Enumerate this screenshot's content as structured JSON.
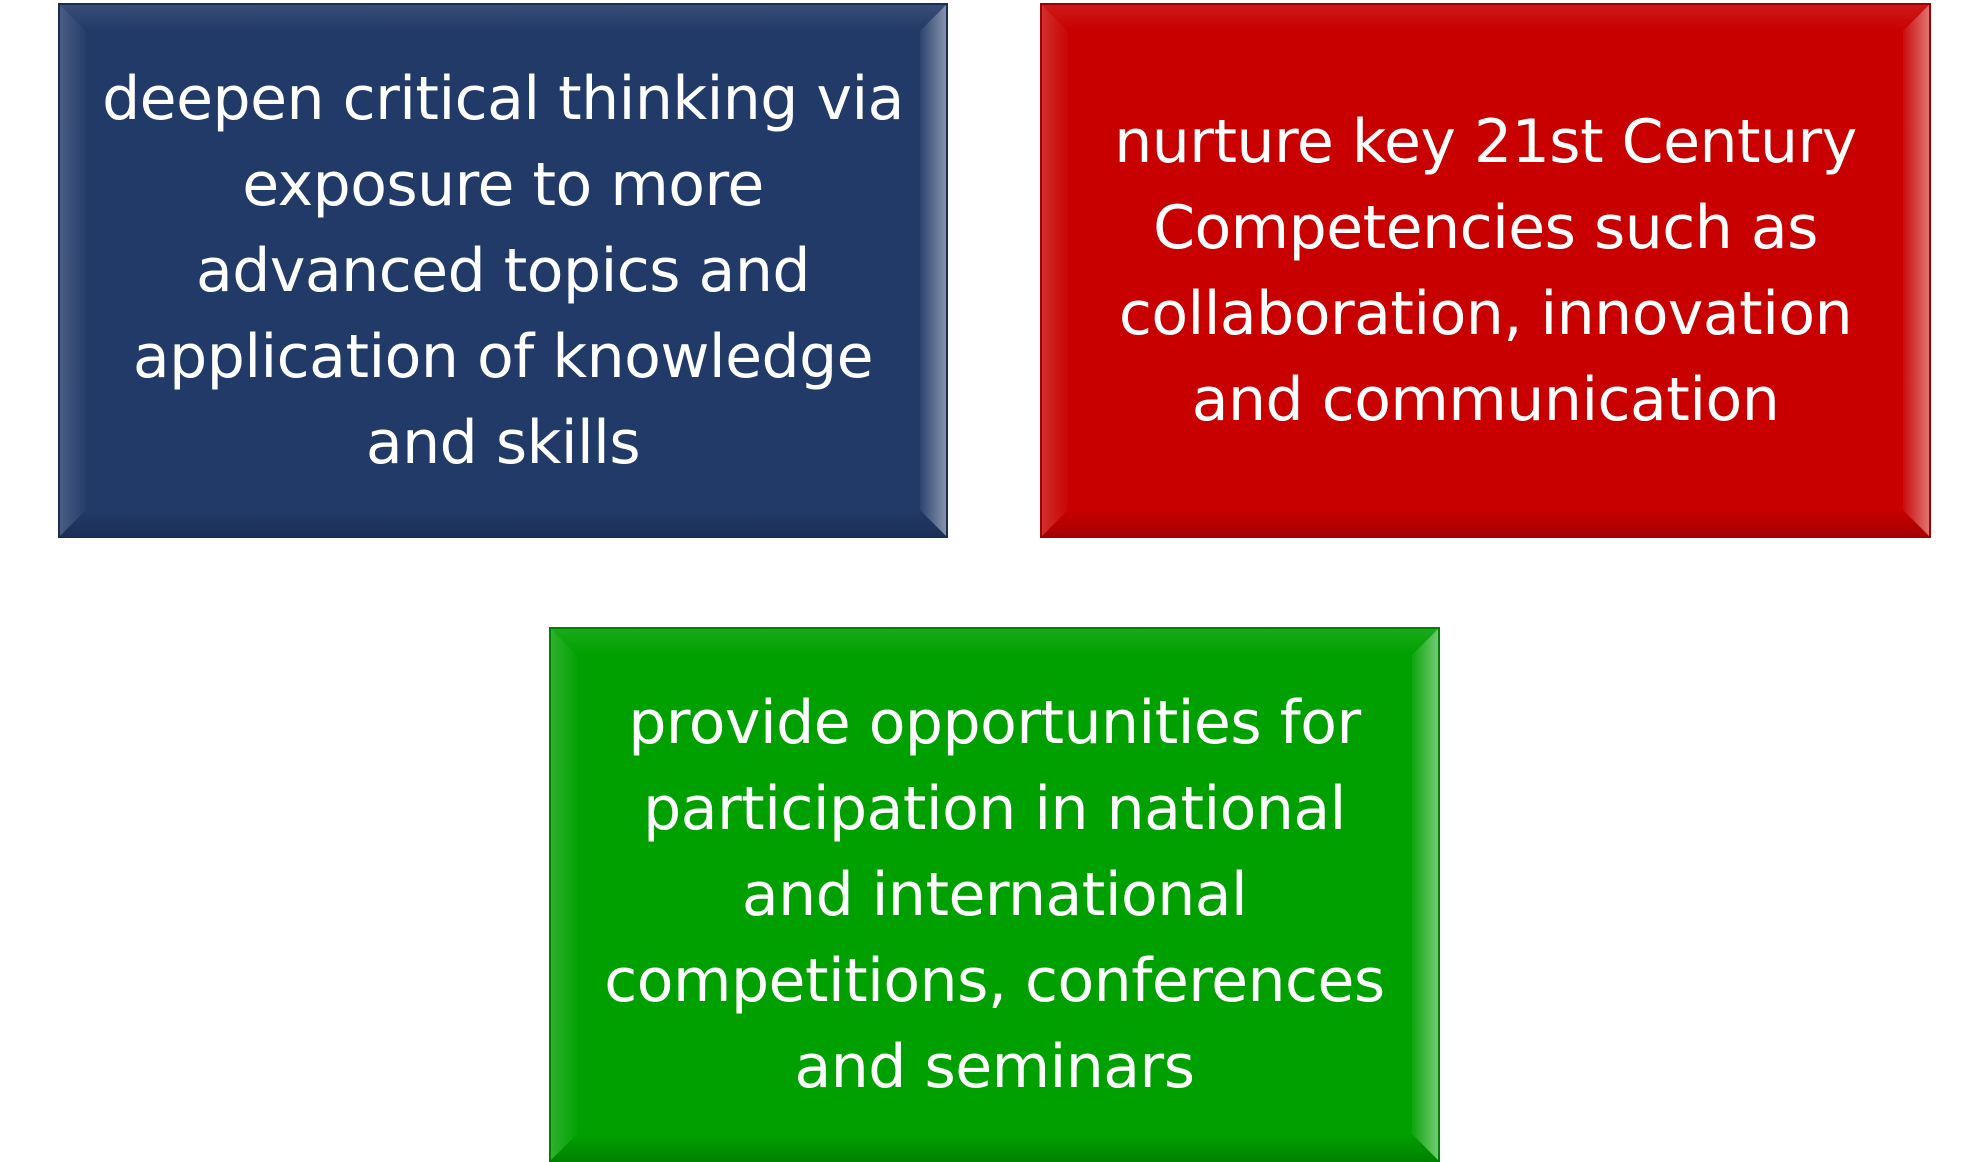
{
  "cards": [
    {
      "text": "deepen critical thinking via exposure to more advanced topics and application of knowledge and skills",
      "color": "#223a68"
    },
    {
      "text": "nurture key 21st Century Competencies such as collaboration, innovation and communication",
      "color": "#c80000"
    },
    {
      "text": "provide opportunities for participation in national and international competitions, conferences and seminars",
      "color": "#00a000"
    }
  ]
}
